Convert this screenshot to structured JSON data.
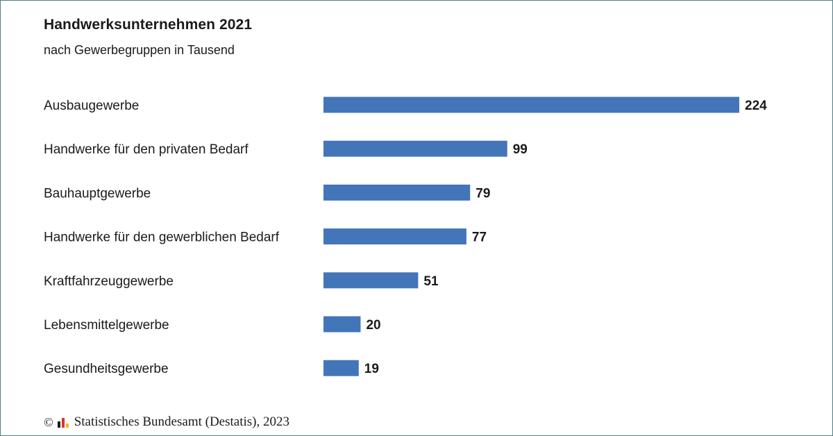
{
  "chart_data": {
    "type": "bar",
    "orientation": "horizontal",
    "title": "Handwerksunternehmen 2021",
    "subtitle": "nach Gewerbegruppen in Tausend",
    "categories": [
      "Ausbaugewerbe",
      "Handwerke für den privaten Bedarf",
      "Bauhauptgewerbe",
      "Handwerke für den gewerblichen Bedarf",
      "Kraftfahrzeuggewerbe",
      "Lebensmittelgewerbe",
      "Gesundheitsgewerbe"
    ],
    "values": [
      224,
      99,
      79,
      77,
      51,
      20,
      19
    ],
    "xlim": [
      0,
      224
    ],
    "grid": false,
    "legend": "none",
    "bar_color": "#4375b9"
  },
  "footer": {
    "copyright_symbol": "©",
    "source": "Statistisches Bundesamt (Destatis), 2023",
    "logo_icon": "destatis-logo-icon",
    "logo_colors": [
      "#1a1a1a",
      "#d9342b",
      "#f2b81c"
    ]
  }
}
